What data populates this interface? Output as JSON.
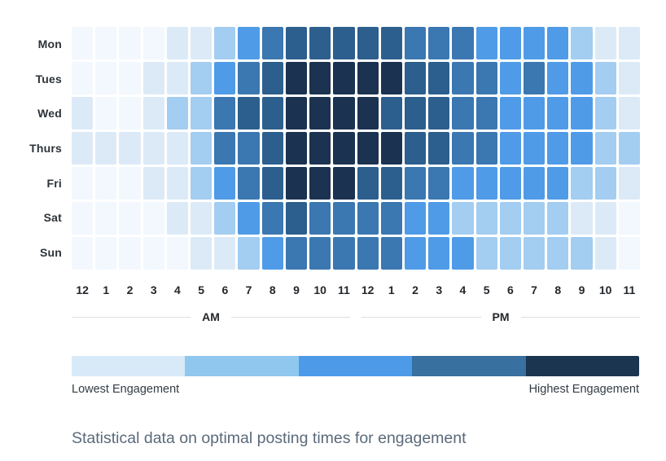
{
  "figure": {
    "caption": "Statistical data on optimal posting times for engagement"
  },
  "heatmap": {
    "days": [
      "Mon",
      "Tues",
      "Wed",
      "Thurs",
      "Fri",
      "Sat",
      "Sun"
    ],
    "hours": [
      "12",
      "1",
      "2",
      "3",
      "4",
      "5",
      "6",
      "7",
      "8",
      "9",
      "10",
      "11",
      "12",
      "1",
      "2",
      "3",
      "4",
      "5",
      "6",
      "7",
      "8",
      "9",
      "10",
      "11"
    ],
    "am_label": "AM",
    "pm_label": "PM",
    "palette": [
      "#F2F8FD",
      "#DCEAF7",
      "#A3CDF1",
      "#4F9BE8",
      "#3B77B1",
      "#2C5F8D",
      "#1B3350"
    ]
  },
  "legend": {
    "colors": [
      "#D8EAF8",
      "#90C7EF",
      "#4C9AE8",
      "#38709F",
      "#1B3450"
    ],
    "low_label": "Lowest Engagement",
    "high_label": "Highest Engagement"
  },
  "chart_data": {
    "type": "heatmap",
    "title": "Statistical data on optimal posting times for engagement",
    "x_categories": [
      "12am",
      "1am",
      "2am",
      "3am",
      "4am",
      "5am",
      "6am",
      "7am",
      "8am",
      "9am",
      "10am",
      "11am",
      "12pm",
      "1pm",
      "2pm",
      "3pm",
      "4pm",
      "5pm",
      "6pm",
      "7pm",
      "8pm",
      "9pm",
      "10pm",
      "11pm"
    ],
    "y_categories": [
      "Mon",
      "Tues",
      "Wed",
      "Thurs",
      "Fri",
      "Sat",
      "Sun"
    ],
    "value_scale": {
      "min": 0,
      "max": 6,
      "meaning": "0 = lowest engagement, 6 = highest engagement"
    },
    "legend_low": "Lowest Engagement",
    "legend_high": "Highest Engagement",
    "values": [
      [
        0,
        0,
        0,
        0,
        1,
        1,
        2,
        3,
        4,
        5,
        5,
        5,
        5,
        5,
        4,
        4,
        4,
        3,
        3,
        3,
        3,
        2,
        1,
        1
      ],
      [
        0,
        0,
        0,
        1,
        1,
        2,
        3,
        4,
        5,
        6,
        6,
        6,
        6,
        6,
        5,
        5,
        4,
        4,
        3,
        4,
        3,
        3,
        2,
        1
      ],
      [
        1,
        0,
        0,
        1,
        2,
        2,
        4,
        5,
        5,
        6,
        6,
        6,
        6,
        5,
        5,
        5,
        4,
        4,
        3,
        3,
        3,
        3,
        2,
        1
      ],
      [
        1,
        1,
        1,
        1,
        1,
        2,
        4,
        4,
        5,
        6,
        6,
        6,
        6,
        6,
        5,
        5,
        4,
        4,
        3,
        3,
        3,
        3,
        2,
        2
      ],
      [
        0,
        0,
        0,
        1,
        1,
        2,
        3,
        4,
        5,
        6,
        6,
        6,
        5,
        5,
        4,
        4,
        3,
        3,
        3,
        3,
        3,
        2,
        2,
        1
      ],
      [
        0,
        0,
        0,
        0,
        1,
        1,
        2,
        3,
        4,
        5,
        4,
        4,
        4,
        4,
        3,
        3,
        2,
        2,
        2,
        2,
        2,
        1,
        1,
        0
      ],
      [
        0,
        0,
        0,
        0,
        0,
        1,
        1,
        2,
        3,
        4,
        4,
        4,
        4,
        4,
        3,
        3,
        3,
        2,
        2,
        2,
        2,
        2,
        1,
        0
      ]
    ]
  }
}
